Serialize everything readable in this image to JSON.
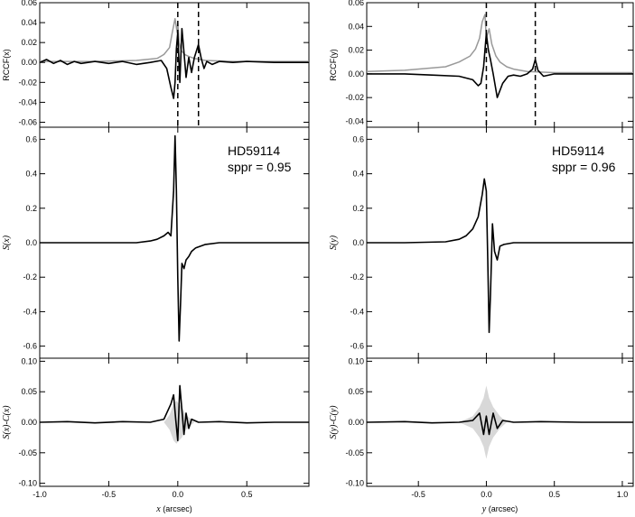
{
  "chart_data": [
    {
      "id": "left",
      "type": "line",
      "xlim": [
        -1.0,
        0.95
      ],
      "xticks": [
        -1.0,
        -0.5,
        0.0,
        0.5
      ],
      "xtick_labels": [
        "-1.0",
        "-0.5",
        "0.0",
        "0.5"
      ],
      "xlabel_var": "x",
      "xlabel_unit": " (arcsec)",
      "panels": [
        {
          "name": "rccf",
          "ylabel": "RCCF(x)",
          "ylim": [
            -0.065,
            0.06
          ],
          "yticks": [
            -0.06,
            -0.04,
            -0.02,
            0.0,
            0.02,
            0.04,
            0.06
          ],
          "ytick_labels": [
            "-0.06",
            "-0.04",
            "-0.02",
            "0.00",
            "0.02",
            "0.04",
            "0.06"
          ],
          "dashed_x": [
            0.0,
            0.15
          ],
          "series": [
            {
              "color": "#999999",
              "x": [
                -1.0,
                -0.6,
                -0.3,
                -0.15,
                -0.1,
                -0.06,
                -0.04,
                -0.02,
                -0.005,
                0.0,
                0.01,
                0.025,
                0.05,
                0.08,
                0.12,
                0.2,
                0.4,
                0.95
              ],
              "y": [
                0.001,
                0.001,
                0.002,
                0.004,
                0.008,
                0.015,
                0.03,
                0.044,
                0.03,
                0.04,
                0.02,
                0.012,
                0.008,
                0.006,
                0.004,
                0.002,
                0.001,
                0.001
              ]
            },
            {
              "color": "#000000",
              "x": [
                -1.0,
                -0.95,
                -0.9,
                -0.85,
                -0.8,
                -0.75,
                -0.7,
                -0.6,
                -0.5,
                -0.4,
                -0.3,
                -0.2,
                -0.12,
                -0.08,
                -0.05,
                -0.03,
                -0.02,
                -0.01,
                0.0,
                0.015,
                0.03,
                0.045,
                0.06,
                0.08,
                0.1,
                0.12,
                0.15,
                0.17,
                0.19,
                0.21,
                0.25,
                0.3,
                0.4,
                0.5,
                0.7,
                0.95
              ],
              "y": [
                0.0,
                0.003,
                -0.001,
                0.002,
                -0.002,
                0.001,
                -0.001,
                0.001,
                -0.001,
                0.001,
                -0.002,
                0.0,
                0.002,
                -0.006,
                -0.025,
                -0.036,
                -0.02,
                0.014,
                0.03,
                -0.02,
                0.034,
                0.01,
                -0.015,
                0.005,
                -0.01,
                0.005,
                0.018,
                0.004,
                -0.006,
                0.001,
                -0.002,
                0.001,
                0.0,
                0.001,
                0.0,
                0.0
              ]
            }
          ]
        },
        {
          "name": "s",
          "ylabel": "S(x)",
          "ylim": [
            -0.67,
            0.67
          ],
          "yticks": [
            -0.6,
            -0.4,
            -0.2,
            0.0,
            0.2,
            0.4,
            0.6
          ],
          "ytick_labels": [
            "-0.6",
            "-0.4",
            "-0.2",
            "0.0",
            "0.2",
            "0.4",
            "0.6"
          ],
          "annotation": [
            "HD59114",
            "sppr = 0.95"
          ],
          "series": [
            {
              "color": "#000000",
              "x": [
                -1.0,
                -0.6,
                -0.3,
                -0.2,
                -0.15,
                -0.1,
                -0.07,
                -0.05,
                -0.03,
                -0.02,
                -0.01,
                0.0,
                0.01,
                0.02,
                0.03,
                0.045,
                0.06,
                0.08,
                0.1,
                0.13,
                0.2,
                0.3,
                0.5,
                0.95
              ],
              "y": [
                0.0,
                0.0,
                0.0,
                0.01,
                0.02,
                0.04,
                0.06,
                0.04,
                0.3,
                0.62,
                0.3,
                -0.2,
                -0.57,
                -0.35,
                -0.12,
                -0.15,
                -0.1,
                -0.08,
                -0.05,
                -0.03,
                -0.01,
                0.0,
                0.0,
                0.0
              ]
            }
          ]
        },
        {
          "name": "resid",
          "ylabel": "S(x)-C(x)",
          "ylim": [
            -0.105,
            0.105
          ],
          "yticks": [
            -0.1,
            -0.05,
            0.0,
            0.05,
            0.1
          ],
          "ytick_labels": [
            "-0.10",
            "-0.05",
            "0.00",
            "0.05",
            "0.10"
          ],
          "band": {
            "x": [
              -0.1,
              -0.06,
              -0.03,
              -0.01,
              0.01,
              0.03,
              0.05,
              0.08,
              0.12
            ],
            "half": [
              0.0,
              0.012,
              0.03,
              0.035,
              0.03,
              0.025,
              0.015,
              0.008,
              0.0
            ]
          },
          "series": [
            {
              "color": "#000000",
              "x": [
                -1.0,
                -0.8,
                -0.6,
                -0.4,
                -0.2,
                -0.1,
                -0.05,
                -0.03,
                -0.015,
                0.0,
                0.015,
                0.03,
                0.045,
                0.06,
                0.08,
                0.1,
                0.15,
                0.3,
                0.5,
                0.7,
                0.95
              ],
              "y": [
                0.0,
                0.001,
                -0.001,
                0.001,
                0.0,
                0.005,
                0.03,
                0.045,
                0.005,
                -0.03,
                0.06,
                0.02,
                -0.02,
                0.015,
                -0.01,
                0.005,
                0.0,
                0.001,
                -0.001,
                0.0,
                0.0
              ]
            }
          ]
        }
      ]
    },
    {
      "id": "right",
      "type": "line",
      "xlim": [
        -0.88,
        1.08
      ],
      "xticks": [
        -0.5,
        0.0,
        0.5,
        1.0
      ],
      "xtick_labels": [
        "-0.5",
        "0.0",
        "0.5",
        "1.0"
      ],
      "xlabel_var": "y",
      "xlabel_unit": " (arcsec)",
      "panels": [
        {
          "name": "rccf",
          "ylabel": "RCCF(y)",
          "ylim": [
            -0.045,
            0.06
          ],
          "yticks": [
            -0.04,
            -0.02,
            0.0,
            0.02,
            0.04,
            0.06
          ],
          "ytick_labels": [
            "-0.04",
            "-0.02",
            "0.00",
            "0.02",
            "0.04",
            "0.06"
          ],
          "dashed_x": [
            0.0,
            0.36
          ],
          "series": [
            {
              "color": "#999999",
              "x": [
                -0.88,
                -0.6,
                -0.3,
                -0.2,
                -0.12,
                -0.08,
                -0.05,
                -0.03,
                -0.01,
                0.0,
                0.02,
                0.04,
                0.07,
                0.1,
                0.15,
                0.2,
                0.3,
                0.5,
                1.08
              ],
              "y": [
                0.002,
                0.003,
                0.006,
                0.01,
                0.015,
                0.021,
                0.03,
                0.044,
                0.05,
                0.03,
                0.038,
                0.025,
                0.015,
                0.01,
                0.006,
                0.004,
                0.002,
                0.001,
                0.001
              ]
            },
            {
              "color": "#000000",
              "x": [
                -0.88,
                -0.6,
                -0.4,
                -0.2,
                -0.1,
                -0.06,
                -0.04,
                -0.02,
                0.0,
                0.015,
                0.03,
                0.05,
                0.08,
                0.12,
                0.16,
                0.2,
                0.25,
                0.3,
                0.34,
                0.36,
                0.38,
                0.42,
                0.5,
                0.7,
                1.08
              ],
              "y": [
                0.0,
                0.0,
                -0.001,
                -0.002,
                -0.005,
                -0.01,
                -0.008,
                0.006,
                0.034,
                0.02,
                0.012,
                0.0,
                -0.02,
                -0.008,
                -0.002,
                -0.001,
                -0.002,
                0.0,
                0.004,
                0.012,
                0.003,
                -0.002,
                0.0,
                0.0,
                0.0
              ]
            }
          ]
        },
        {
          "name": "s",
          "ylabel": "S(y)",
          "ylim": [
            -0.67,
            0.67
          ],
          "yticks": [
            -0.6,
            -0.4,
            -0.2,
            0.0,
            0.2,
            0.4,
            0.6
          ],
          "ytick_labels": [
            "-0.6",
            "-0.4",
            "-0.2",
            "0.0",
            "0.2",
            "0.4",
            "0.6"
          ],
          "annotation": [
            "HD59114",
            "sppr = 0.96"
          ],
          "series": [
            {
              "color": "#000000",
              "x": [
                -0.88,
                -0.6,
                -0.3,
                -0.2,
                -0.15,
                -0.1,
                -0.06,
                -0.03,
                -0.015,
                0.0,
                0.01,
                0.02,
                0.03,
                0.045,
                0.06,
                0.08,
                0.1,
                0.13,
                0.2,
                0.3,
                0.5,
                1.08
              ],
              "y": [
                0.0,
                0.0,
                0.005,
                0.02,
                0.04,
                0.08,
                0.15,
                0.28,
                0.37,
                0.3,
                -0.1,
                -0.52,
                -0.3,
                0.11,
                -0.05,
                -0.1,
                -0.02,
                -0.01,
                0.0,
                0.0,
                0.0,
                0.0
              ]
            }
          ]
        },
        {
          "name": "resid",
          "ylabel": "S(y)-C(y)",
          "ylim": [
            -0.105,
            0.105
          ],
          "yticks": [
            -0.1,
            -0.05,
            0.0,
            0.05,
            0.1
          ],
          "ytick_labels": [
            "-0.10",
            "-0.05",
            "0.00",
            "0.05",
            "0.10"
          ],
          "band": {
            "x": [
              -0.2,
              -0.1,
              -0.05,
              -0.02,
              0.0,
              0.02,
              0.05,
              0.1,
              0.15
            ],
            "half": [
              0.0,
              0.01,
              0.025,
              0.04,
              0.06,
              0.04,
              0.025,
              0.01,
              0.0
            ]
          },
          "series": [
            {
              "color": "#000000",
              "x": [
                -0.88,
                -0.6,
                -0.4,
                -0.2,
                -0.1,
                -0.05,
                -0.02,
                0.0,
                0.02,
                0.05,
                0.08,
                0.12,
                0.2,
                0.4,
                0.7,
                1.08
              ],
              "y": [
                0.0,
                0.001,
                -0.001,
                0.0,
                0.003,
                0.015,
                -0.02,
                0.01,
                -0.02,
                0.015,
                -0.01,
                0.003,
                0.0,
                0.001,
                0.0,
                0.0
              ]
            }
          ]
        }
      ]
    }
  ]
}
